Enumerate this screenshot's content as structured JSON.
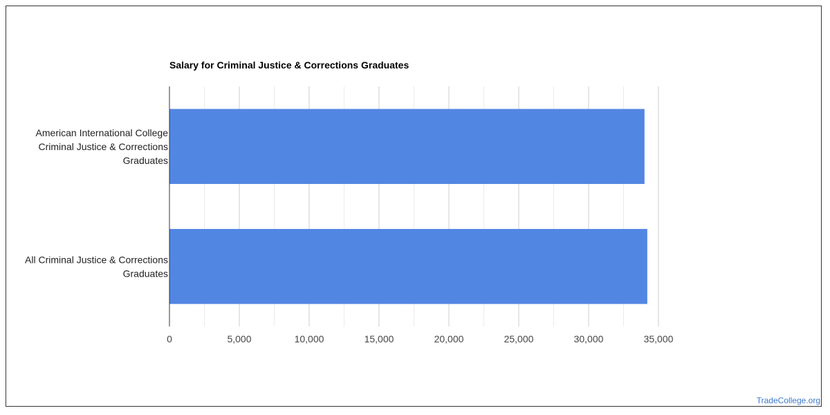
{
  "chart_data": {
    "type": "bar",
    "orientation": "horizontal",
    "title": "Salary for Criminal Justice & Corrections Graduates",
    "categories": [
      [
        "American International College",
        "Criminal Justice & Corrections",
        "Graduates"
      ],
      [
        "All Criminal Justice & Corrections",
        "Graduates"
      ]
    ],
    "values": [
      34000,
      34200
    ],
    "xlim": [
      0,
      35000
    ],
    "xticks": [
      0,
      5000,
      10000,
      15000,
      20000,
      25000,
      30000,
      35000
    ],
    "xtick_labels": [
      "0",
      "5,000",
      "10,000",
      "15,000",
      "20,000",
      "25,000",
      "30,000",
      "35,000"
    ],
    "grid": true,
    "legend": "none",
    "bar_color": "#5286e3",
    "gridline_color": "#cccccc",
    "minor_gridline_color": "#ebebeb"
  },
  "watermark": "TradeCollege.org"
}
